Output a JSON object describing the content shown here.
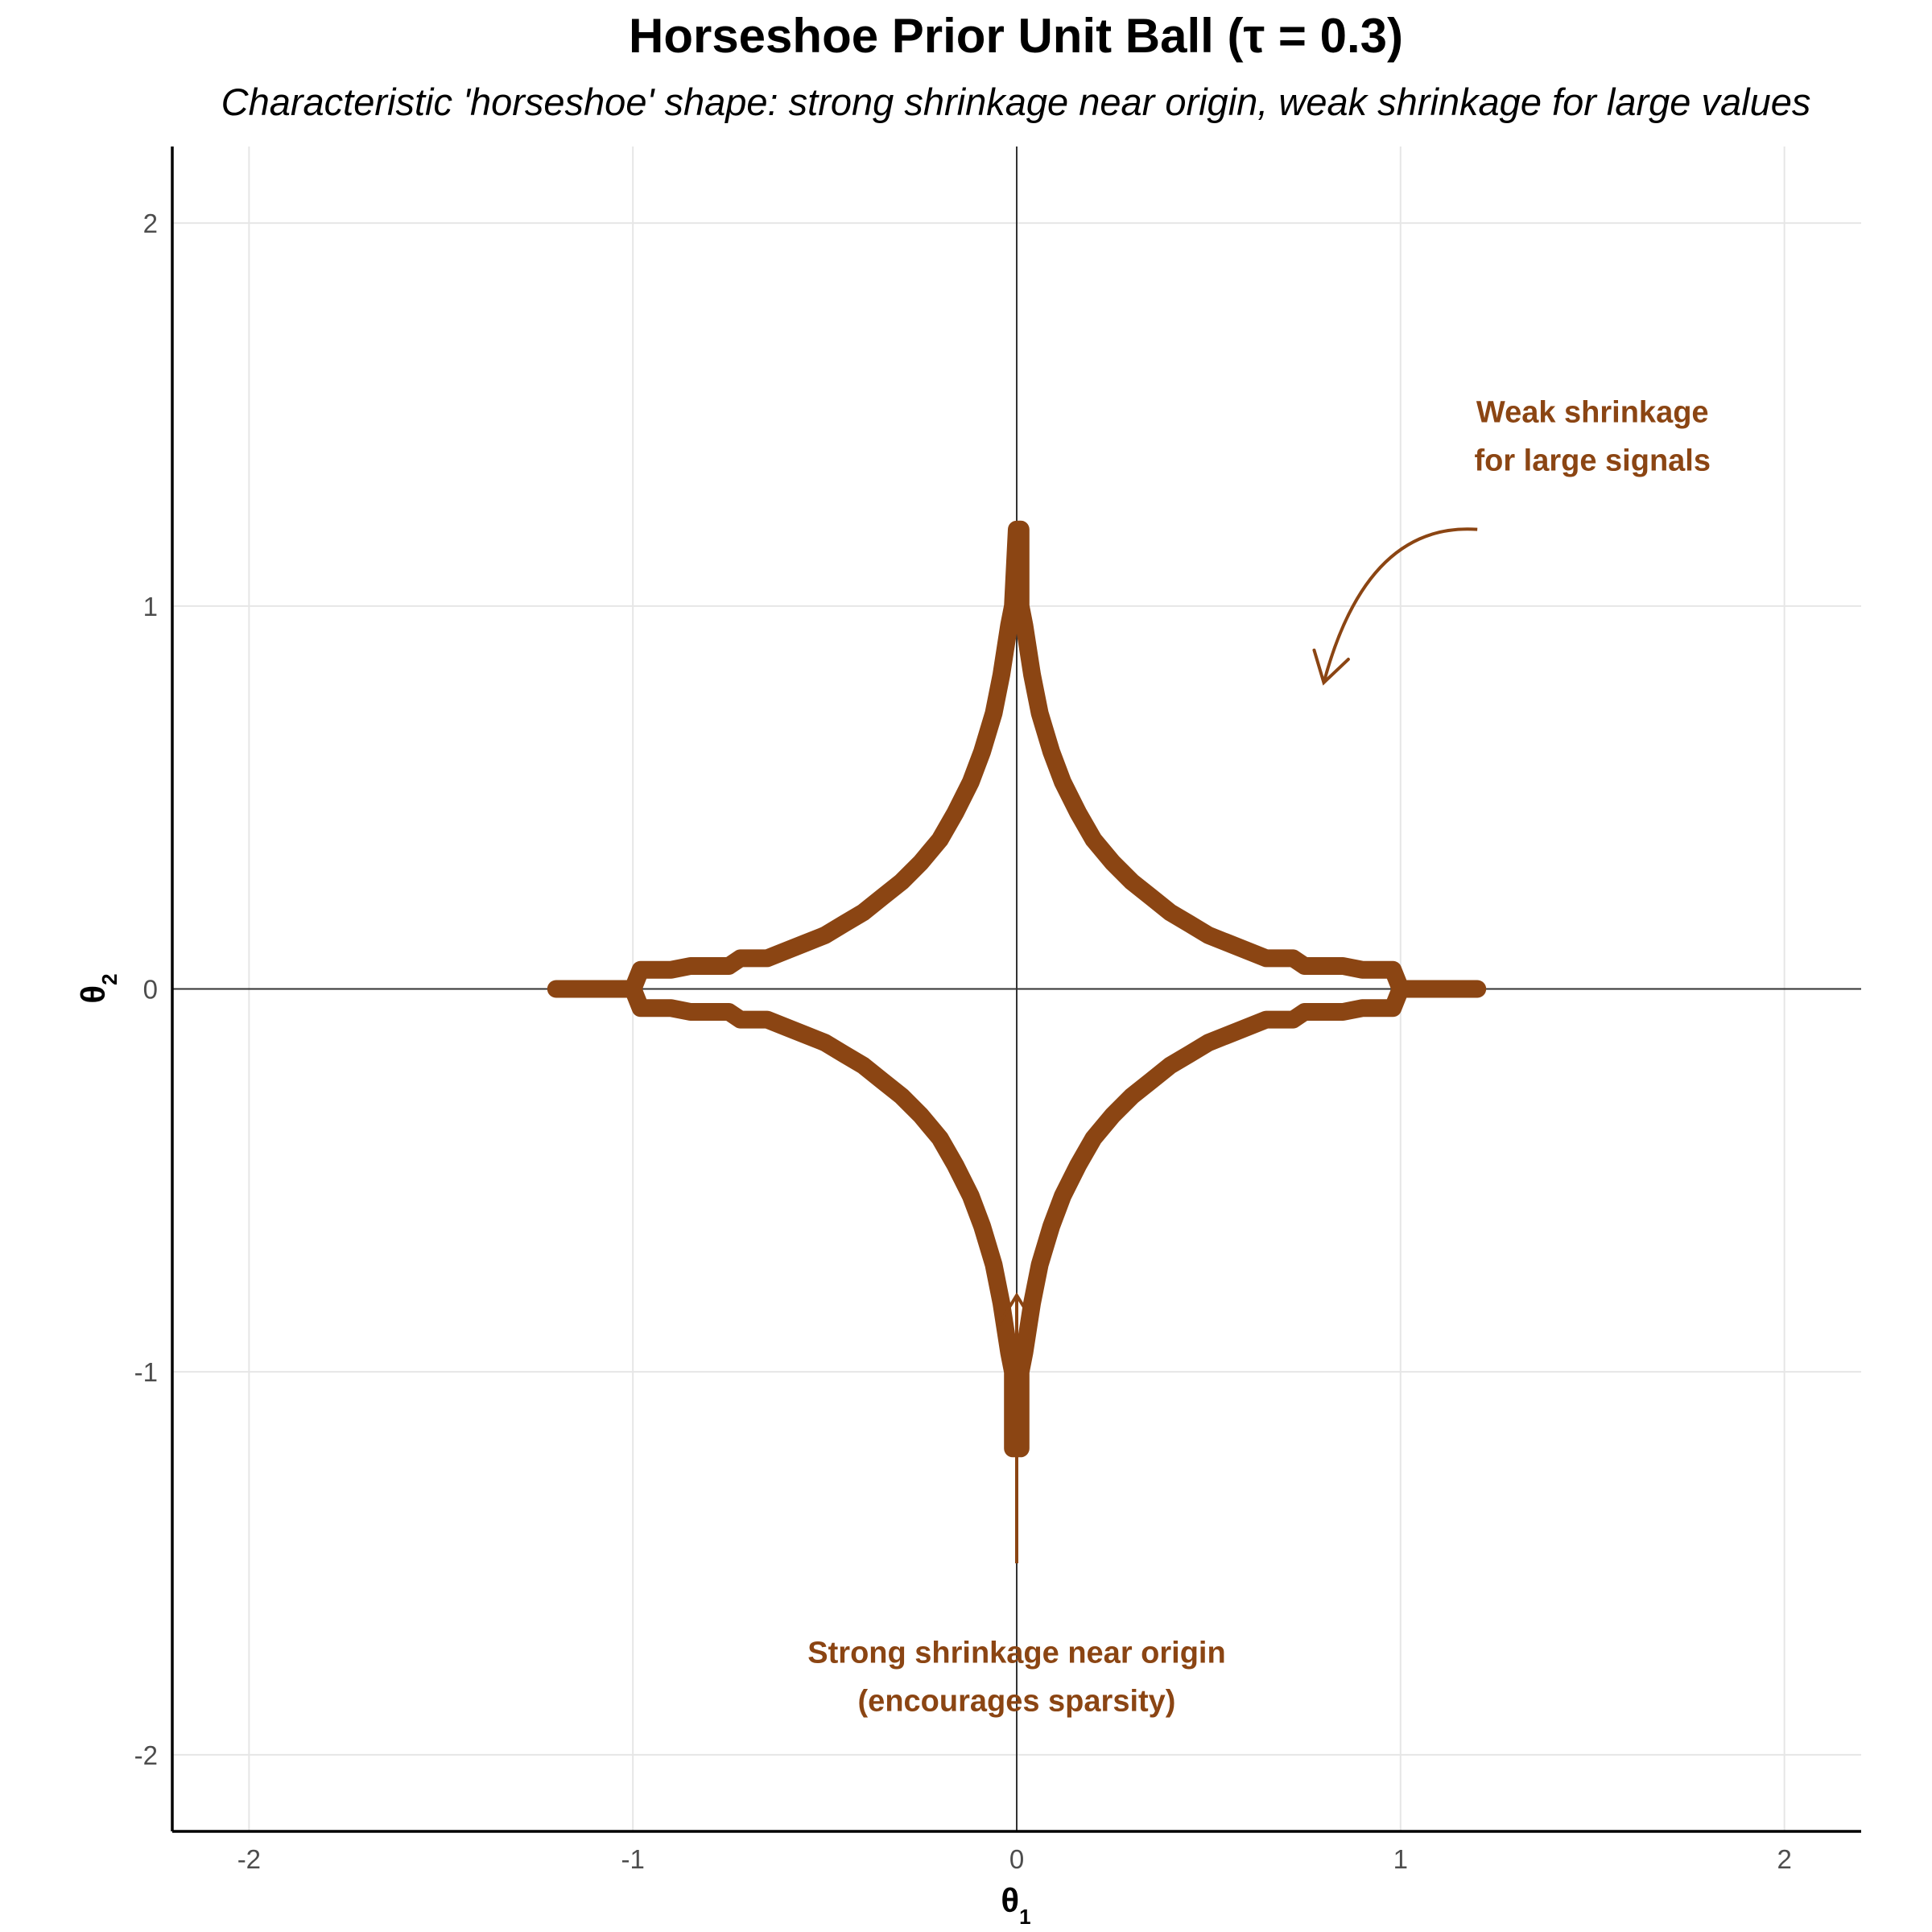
{
  "chart_data": {
    "type": "line",
    "title": "Horseshoe Prior Unit Ball (τ = 0.3)",
    "subtitle": "Characteristic 'horseshoe' shape: strong shrinkage near origin, weak shrinkage for large values",
    "xlabel": "θ",
    "xlabel_sub": "1",
    "ylabel": "θ",
    "ylabel_sub": "2",
    "xlim": [
      -2.2,
      2.2
    ],
    "ylim": [
      -2.2,
      2.2
    ],
    "x_ticks": [
      -2,
      -1,
      0,
      1,
      2
    ],
    "y_ticks": [
      -2,
      -1,
      0,
      1,
      2
    ],
    "x_tick_labels": [
      "-2",
      "-1",
      "0",
      "1",
      "2"
    ],
    "y_tick_labels": [
      "-2",
      "-1",
      "0",
      "1",
      "2"
    ],
    "grid": true,
    "line_color": "#8b4513",
    "series": [
      {
        "values": [
          [
            1.2,
            0
          ],
          [
            1.0,
            0
          ],
          [
            0.98,
            0.05
          ],
          [
            0.9,
            0.05
          ],
          [
            0.85,
            0.06
          ],
          [
            0.75,
            0.06
          ],
          [
            0.72,
            0.08
          ],
          [
            0.65,
            0.08
          ],
          [
            0.6,
            0.1
          ],
          [
            0.55,
            0.12
          ],
          [
            0.5,
            0.14
          ],
          [
            0.45,
            0.17
          ],
          [
            0.4,
            0.2
          ],
          [
            0.35,
            0.24
          ],
          [
            0.3,
            0.28
          ],
          [
            0.25,
            0.33
          ],
          [
            0.2,
            0.39
          ],
          [
            0.16,
            0.46
          ],
          [
            0.12,
            0.54
          ],
          [
            0.09,
            0.62
          ],
          [
            0.06,
            0.72
          ],
          [
            0.04,
            0.82
          ],
          [
            0.02,
            0.95
          ],
          [
            0.01,
            1.0
          ],
          [
            0.01,
            1.2
          ],
          [
            0.0,
            1.2
          ],
          [
            -0.01,
            1.0
          ],
          [
            -0.02,
            0.95
          ],
          [
            -0.04,
            0.82
          ],
          [
            -0.06,
            0.72
          ],
          [
            -0.09,
            0.62
          ],
          [
            -0.12,
            0.54
          ],
          [
            -0.16,
            0.46
          ],
          [
            -0.2,
            0.39
          ],
          [
            -0.25,
            0.33
          ],
          [
            -0.3,
            0.28
          ],
          [
            -0.35,
            0.24
          ],
          [
            -0.4,
            0.2
          ],
          [
            -0.45,
            0.17
          ],
          [
            -0.5,
            0.14
          ],
          [
            -0.55,
            0.12
          ],
          [
            -0.6,
            0.1
          ],
          [
            -0.65,
            0.08
          ],
          [
            -0.72,
            0.08
          ],
          [
            -0.75,
            0.06
          ],
          [
            -0.85,
            0.06
          ],
          [
            -0.9,
            0.05
          ],
          [
            -0.98,
            0.05
          ],
          [
            -1.0,
            0
          ],
          [
            -1.2,
            0
          ],
          [
            -1.0,
            0
          ],
          [
            -0.98,
            -0.05
          ],
          [
            -0.9,
            -0.05
          ],
          [
            -0.85,
            -0.06
          ],
          [
            -0.75,
            -0.06
          ],
          [
            -0.72,
            -0.08
          ],
          [
            -0.65,
            -0.08
          ],
          [
            -0.6,
            -0.1
          ],
          [
            -0.55,
            -0.12
          ],
          [
            -0.5,
            -0.14
          ],
          [
            -0.45,
            -0.17
          ],
          [
            -0.4,
            -0.2
          ],
          [
            -0.35,
            -0.24
          ],
          [
            -0.3,
            -0.28
          ],
          [
            -0.25,
            -0.33
          ],
          [
            -0.2,
            -0.39
          ],
          [
            -0.16,
            -0.46
          ],
          [
            -0.12,
            -0.54
          ],
          [
            -0.09,
            -0.62
          ],
          [
            -0.06,
            -0.72
          ],
          [
            -0.04,
            -0.82
          ],
          [
            -0.02,
            -0.95
          ],
          [
            -0.01,
            -1.0
          ],
          [
            -0.01,
            -1.2
          ],
          [
            0.01,
            -1.2
          ],
          [
            0.01,
            -1.0
          ],
          [
            0.02,
            -0.95
          ],
          [
            0.04,
            -0.82
          ],
          [
            0.06,
            -0.72
          ],
          [
            0.09,
            -0.62
          ],
          [
            0.12,
            -0.54
          ],
          [
            0.16,
            -0.46
          ],
          [
            0.2,
            -0.39
          ],
          [
            0.25,
            -0.33
          ],
          [
            0.3,
            -0.28
          ],
          [
            0.35,
            -0.24
          ],
          [
            0.4,
            -0.2
          ],
          [
            0.45,
            -0.17
          ],
          [
            0.5,
            -0.14
          ],
          [
            0.55,
            -0.12
          ],
          [
            0.6,
            -0.1
          ],
          [
            0.65,
            -0.08
          ],
          [
            0.72,
            -0.08
          ],
          [
            0.75,
            -0.06
          ],
          [
            0.85,
            -0.06
          ],
          [
            0.9,
            -0.05
          ],
          [
            0.98,
            -0.05
          ],
          [
            1.0,
            0
          ],
          [
            1.2,
            0
          ]
        ]
      }
    ],
    "annotations": [
      {
        "lines": [
          "Weak shrinkage",
          "for large signals"
        ],
        "x": 1.5,
        "y": 1.48
      },
      {
        "lines": [
          "Strong shrinkage near origin",
          "(encourages sparsity)"
        ],
        "x": 0,
        "y": -1.76
      }
    ],
    "arrows": [
      {
        "from": [
          1.2,
          1.2
        ],
        "to": [
          0.8,
          0.8
        ],
        "curved": true
      },
      {
        "from": [
          0,
          -1.5
        ],
        "to": [
          0,
          -0.8
        ],
        "curved": false
      }
    ]
  }
}
